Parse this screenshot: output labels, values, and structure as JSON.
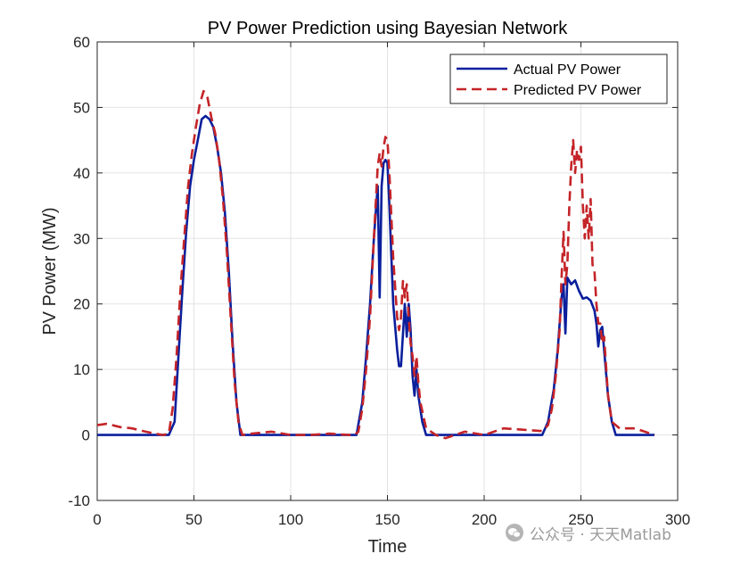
{
  "chart_data": {
    "type": "line",
    "title": "PV Power Prediction using Bayesian Network",
    "xlabel": "Time",
    "ylabel": "PV Power (MW)",
    "xlim": [
      0,
      300
    ],
    "ylim": [
      -10,
      60
    ],
    "x_ticks": [
      0,
      50,
      100,
      150,
      200,
      250,
      300
    ],
    "y_ticks": [
      -10,
      0,
      10,
      20,
      30,
      40,
      50,
      60
    ],
    "grid": true,
    "legend_position": "top-right",
    "series": [
      {
        "name": "Actual PV Power",
        "color": "#0a1f9c",
        "style": "solid",
        "points": [
          [
            0,
            0
          ],
          [
            30,
            0
          ],
          [
            37,
            0
          ],
          [
            40,
            2
          ],
          [
            42,
            12
          ],
          [
            44,
            22
          ],
          [
            46,
            31
          ],
          [
            48,
            38
          ],
          [
            50,
            42
          ],
          [
            52,
            45
          ],
          [
            54,
            48.2
          ],
          [
            56,
            48.7
          ],
          [
            58,
            48.2
          ],
          [
            60,
            47
          ],
          [
            62,
            44
          ],
          [
            64,
            40
          ],
          [
            66,
            34
          ],
          [
            68,
            25
          ],
          [
            70,
            14
          ],
          [
            72,
            5
          ],
          [
            74,
            0
          ],
          [
            100,
            0
          ],
          [
            130,
            0
          ],
          [
            134,
            0
          ],
          [
            137,
            5
          ],
          [
            139,
            12
          ],
          [
            141,
            20
          ],
          [
            143,
            30
          ],
          [
            145,
            38
          ],
          [
            146,
            21
          ],
          [
            147,
            38
          ],
          [
            148,
            41.5
          ],
          [
            149,
            42
          ],
          [
            150,
            41.5
          ],
          [
            151,
            35
          ],
          [
            153,
            20
          ],
          [
            155,
            13
          ],
          [
            156,
            10.5
          ],
          [
            157,
            10.5
          ],
          [
            159,
            20
          ],
          [
            160,
            15
          ],
          [
            161,
            20
          ],
          [
            162,
            16
          ],
          [
            163,
            9
          ],
          [
            164,
            6
          ],
          [
            165,
            10
          ],
          [
            166,
            6
          ],
          [
            168,
            2
          ],
          [
            170,
            0
          ],
          [
            200,
            0
          ],
          [
            225,
            0
          ],
          [
            230,
            0
          ],
          [
            233,
            2
          ],
          [
            236,
            7
          ],
          [
            238,
            13
          ],
          [
            240,
            21
          ],
          [
            241,
            23
          ],
          [
            242,
            15.5
          ],
          [
            243,
            24
          ],
          [
            245,
            23
          ],
          [
            247,
            23.6
          ],
          [
            249,
            22
          ],
          [
            251,
            20.8
          ],
          [
            253,
            21
          ],
          [
            255,
            20.5
          ],
          [
            257,
            19
          ],
          [
            258,
            17
          ],
          [
            259,
            13.5
          ],
          [
            260,
            16
          ],
          [
            261,
            16.5
          ],
          [
            262,
            13
          ],
          [
            264,
            6
          ],
          [
            266,
            2
          ],
          [
            268,
            0
          ],
          [
            288,
            0
          ]
        ]
      },
      {
        "name": "Predicted PV Power",
        "color": "#c42428",
        "style": "dashed",
        "points": [
          [
            0,
            1.5
          ],
          [
            5,
            1.7
          ],
          [
            12,
            1.2
          ],
          [
            18,
            1
          ],
          [
            25,
            0.5
          ],
          [
            30,
            0.2
          ],
          [
            34,
            0
          ],
          [
            37,
            0.2
          ],
          [
            39,
            4
          ],
          [
            41,
            12
          ],
          [
            43,
            22
          ],
          [
            45,
            30
          ],
          [
            47,
            38
          ],
          [
            49,
            43
          ],
          [
            51,
            47
          ],
          [
            53,
            50.5
          ],
          [
            55,
            52.5
          ],
          [
            57,
            51.5
          ],
          [
            59,
            48.5
          ],
          [
            61,
            46
          ],
          [
            63,
            42
          ],
          [
            65,
            36
          ],
          [
            67,
            28
          ],
          [
            69,
            18
          ],
          [
            71,
            8
          ],
          [
            73,
            2
          ],
          [
            75,
            0
          ],
          [
            80,
            0.2
          ],
          [
            90,
            0.5
          ],
          [
            100,
            0
          ],
          [
            110,
            0
          ],
          [
            120,
            0.2
          ],
          [
            130,
            0
          ],
          [
            133,
            0
          ],
          [
            135,
            0.5
          ],
          [
            137,
            4
          ],
          [
            139,
            10
          ],
          [
            141,
            18
          ],
          [
            143,
            30
          ],
          [
            145,
            41
          ],
          [
            146,
            43
          ],
          [
            147,
            41
          ],
          [
            148,
            44
          ],
          [
            149,
            45.5
          ],
          [
            150,
            45
          ],
          [
            151,
            40
          ],
          [
            153,
            27
          ],
          [
            155,
            18
          ],
          [
            156,
            16
          ],
          [
            157,
            18
          ],
          [
            158,
            23.5
          ],
          [
            159,
            21
          ],
          [
            160,
            23
          ],
          [
            161,
            18
          ],
          [
            162,
            14
          ],
          [
            163,
            12
          ],
          [
            164,
            9
          ],
          [
            165,
            12
          ],
          [
            166,
            8
          ],
          [
            167,
            5
          ],
          [
            170,
            1
          ],
          [
            175,
            0
          ],
          [
            180,
            -0.5
          ],
          [
            190,
            0.5
          ],
          [
            200,
            0
          ],
          [
            210,
            1
          ],
          [
            220,
            0.8
          ],
          [
            230,
            0.6
          ],
          [
            233,
            1.5
          ],
          [
            235,
            4
          ],
          [
            237,
            9
          ],
          [
            239,
            16
          ],
          [
            240,
            24
          ],
          [
            241,
            31
          ],
          [
            242,
            23
          ],
          [
            243,
            26
          ],
          [
            244,
            35
          ],
          [
            245,
            41
          ],
          [
            246,
            45
          ],
          [
            247,
            40
          ],
          [
            248,
            43.5
          ],
          [
            249,
            42
          ],
          [
            250,
            44
          ],
          [
            251,
            35
          ],
          [
            252,
            30
          ],
          [
            253,
            35
          ],
          [
            254,
            30
          ],
          [
            255,
            36
          ],
          [
            256,
            26
          ],
          [
            257,
            25
          ],
          [
            258,
            20
          ],
          [
            259,
            17
          ],
          [
            260,
            17
          ],
          [
            261,
            14
          ],
          [
            262,
            15
          ],
          [
            264,
            6
          ],
          [
            266,
            2
          ],
          [
            270,
            1
          ],
          [
            278,
            1
          ],
          [
            288,
            0
          ]
        ]
      }
    ]
  },
  "watermark": {
    "text": "公众号 · 天天Matlab",
    "logo_icon": "wechat-logo-icon"
  }
}
